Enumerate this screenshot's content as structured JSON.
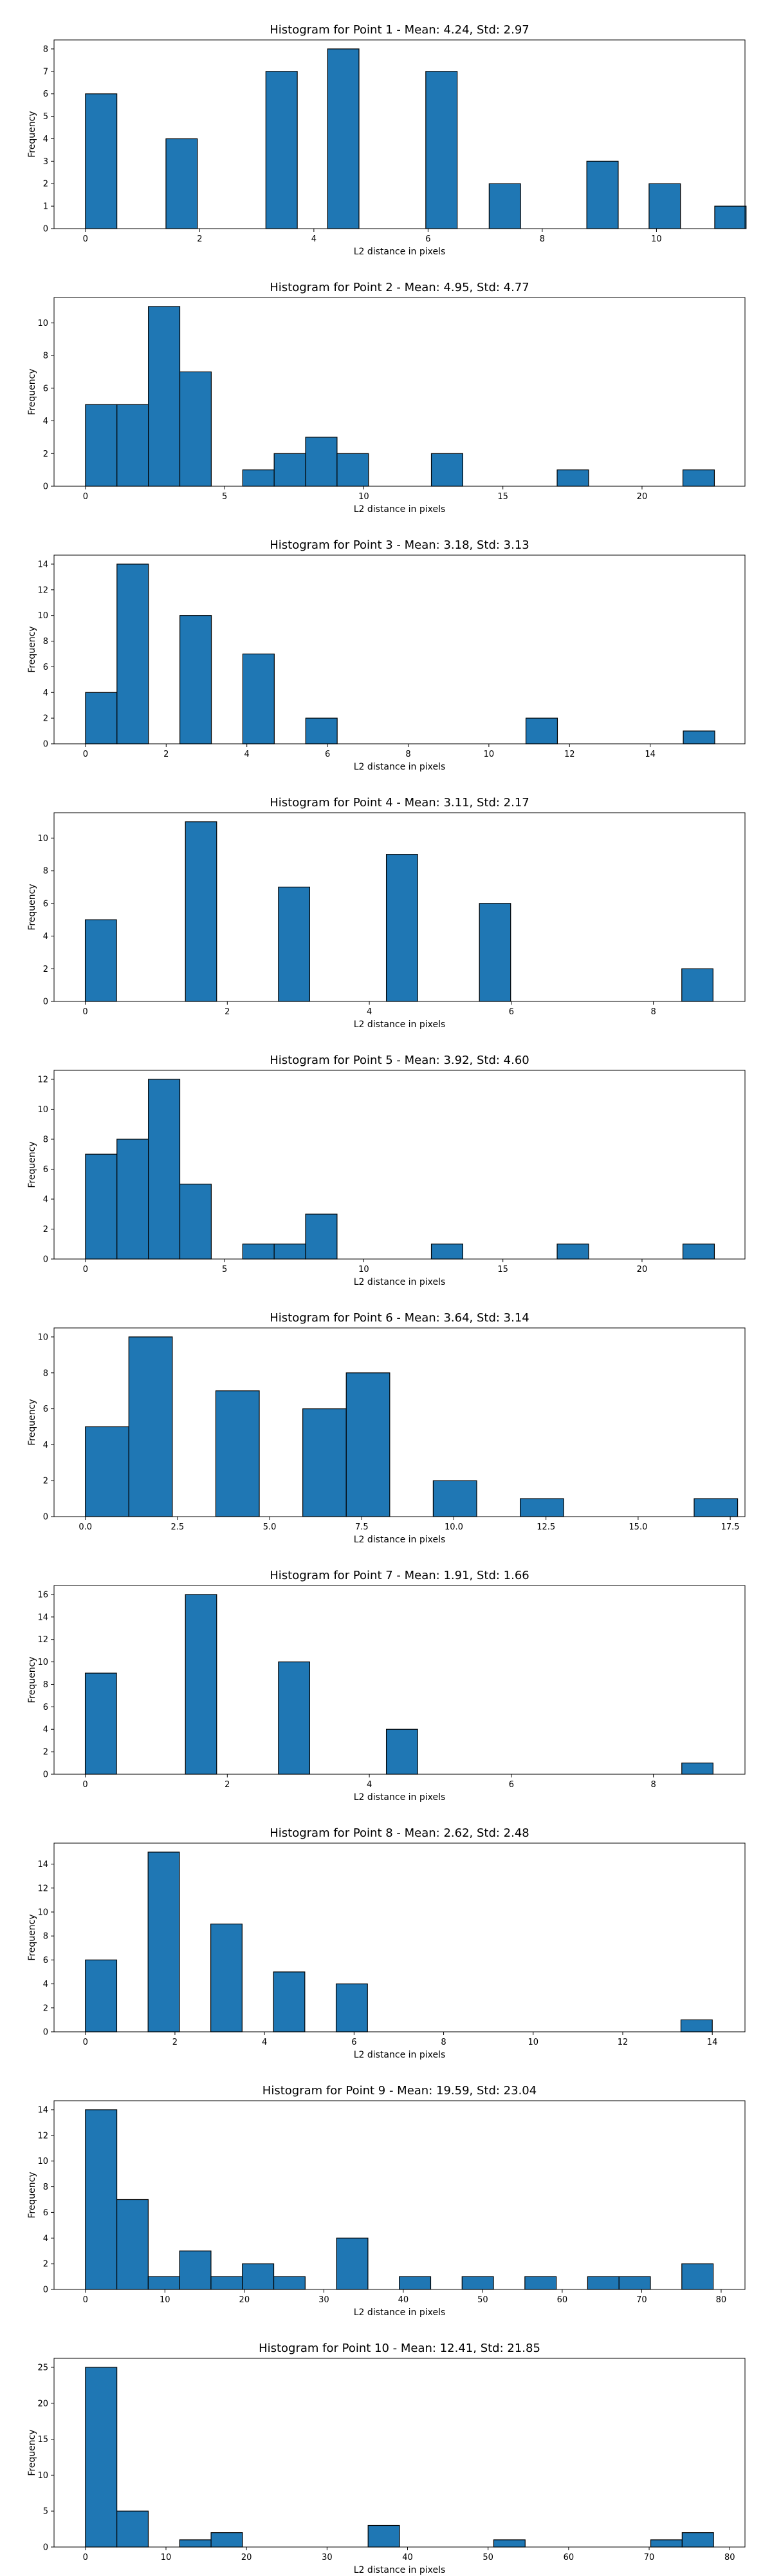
{
  "chart_data": [
    {
      "type": "bar",
      "title": "Histogram for Point 1 - Mean: 4.24, Std: 2.97",
      "xlabel": "L2 distance in pixels",
      "ylabel": "Frequency",
      "xlim": [
        -0.55,
        11.55
      ],
      "ylim": [
        0,
        8.4
      ],
      "bar_width": 0.55,
      "bars": [
        {
          "x": 0.0,
          "value": 6
        },
        {
          "x": 1.41,
          "value": 4
        },
        {
          "x": 3.16,
          "value": 7
        },
        {
          "x": 4.24,
          "value": 8
        },
        {
          "x": 5.96,
          "value": 7
        },
        {
          "x": 7.07,
          "value": 2
        },
        {
          "x": 8.78,
          "value": 3
        },
        {
          "x": 9.87,
          "value": 2
        },
        {
          "x": 11.02,
          "value": 1
        }
      ],
      "xticks": [
        0,
        2,
        4,
        6,
        8,
        10
      ],
      "yticks": [
        0,
        1,
        2,
        3,
        4,
        5,
        6,
        7,
        8
      ]
    },
    {
      "type": "bar",
      "title": "Histogram for Point 2 - Mean: 4.95, Std: 4.77",
      "xlabel": "L2 distance in pixels",
      "ylabel": "Frequency",
      "xlim": [
        -1.13,
        23.7
      ],
      "ylim": [
        0,
        11.55
      ],
      "bar_width": 1.13,
      "bars": [
        {
          "x": 0.0,
          "value": 5
        },
        {
          "x": 1.13,
          "value": 5
        },
        {
          "x": 2.26,
          "value": 11
        },
        {
          "x": 3.39,
          "value": 7
        },
        {
          "x": 5.65,
          "value": 1
        },
        {
          "x": 6.78,
          "value": 2
        },
        {
          "x": 7.91,
          "value": 3
        },
        {
          "x": 9.04,
          "value": 2
        },
        {
          "x": 12.43,
          "value": 2
        },
        {
          "x": 16.95,
          "value": 1
        },
        {
          "x": 21.47,
          "value": 1
        }
      ],
      "xticks": [
        0,
        5,
        10,
        15,
        20
      ],
      "yticks": [
        0,
        2,
        4,
        6,
        8,
        10
      ]
    },
    {
      "type": "bar",
      "title": "Histogram for Point 3 - Mean: 3.18, Std: 3.13",
      "xlabel": "L2 distance in pixels",
      "ylabel": "Frequency",
      "xlim": [
        -0.78,
        16.35
      ],
      "ylim": [
        0,
        14.7
      ],
      "bar_width": 0.78,
      "bars": [
        {
          "x": 0.0,
          "value": 4
        },
        {
          "x": 0.78,
          "value": 14
        },
        {
          "x": 2.34,
          "value": 10
        },
        {
          "x": 3.9,
          "value": 7
        },
        {
          "x": 5.46,
          "value": 2
        },
        {
          "x": 10.92,
          "value": 2
        },
        {
          "x": 14.82,
          "value": 1
        }
      ],
      "xticks": [
        0,
        2,
        4,
        6,
        8,
        10,
        12,
        14
      ],
      "yticks": [
        0,
        2,
        4,
        6,
        8,
        10,
        12,
        14
      ]
    },
    {
      "type": "bar",
      "title": "Histogram for Point 4 - Mean: 3.11, Std: 2.17",
      "xlabel": "L2 distance in pixels",
      "ylabel": "Frequency",
      "xlim": [
        -0.44,
        9.29
      ],
      "ylim": [
        0,
        11.55
      ],
      "bar_width": 0.44,
      "bars": [
        {
          "x": 0.0,
          "value": 5
        },
        {
          "x": 1.41,
          "value": 11
        },
        {
          "x": 2.72,
          "value": 7
        },
        {
          "x": 4.24,
          "value": 9
        },
        {
          "x": 5.55,
          "value": 6
        },
        {
          "x": 8.4,
          "value": 2
        }
      ],
      "xticks": [
        0,
        2,
        4,
        6,
        8
      ],
      "yticks": [
        0,
        2,
        4,
        6,
        8,
        10
      ]
    },
    {
      "type": "bar",
      "title": "Histogram for Point 5 - Mean: 3.92, Std: 4.60",
      "xlabel": "L2 distance in pixels",
      "ylabel": "Frequency",
      "xlim": [
        -1.13,
        23.7
      ],
      "ylim": [
        0,
        12.6
      ],
      "bar_width": 1.13,
      "bars": [
        {
          "x": 0.0,
          "value": 7
        },
        {
          "x": 1.13,
          "value": 8
        },
        {
          "x": 2.26,
          "value": 12
        },
        {
          "x": 3.39,
          "value": 5
        },
        {
          "x": 5.65,
          "value": 1
        },
        {
          "x": 6.78,
          "value": 1
        },
        {
          "x": 7.91,
          "value": 3
        },
        {
          "x": 12.43,
          "value": 1
        },
        {
          "x": 16.95,
          "value": 1
        },
        {
          "x": 21.47,
          "value": 1
        }
      ],
      "xticks": [
        0,
        5,
        10,
        15,
        20
      ],
      "yticks": [
        0,
        2,
        4,
        6,
        8,
        10,
        12
      ]
    },
    {
      "type": "bar",
      "title": "Histogram for Point 6 - Mean: 3.64, Std: 3.14",
      "xlabel": "L2 distance in pixels",
      "ylabel": "Frequency",
      "xlim": [
        -0.85,
        17.9
      ],
      "ylim": [
        0,
        10.5
      ],
      "bar_width": 1.18,
      "bars": [
        {
          "x": 0.0,
          "value": 5
        },
        {
          "x": 1.18,
          "value": 10
        },
        {
          "x": 3.54,
          "value": 7
        },
        {
          "x": 5.9,
          "value": 6
        },
        {
          "x": 7.08,
          "value": 8
        },
        {
          "x": 9.44,
          "value": 2
        },
        {
          "x": 11.8,
          "value": 1
        },
        {
          "x": 16.52,
          "value": 1
        }
      ],
      "xticks": [
        "0.0",
        "2.5",
        "5.0",
        "7.5",
        "10.0",
        "12.5",
        "15.0",
        "17.5"
      ],
      "yticks": [
        0,
        2,
        4,
        6,
        8,
        10
      ]
    },
    {
      "type": "bar",
      "title": "Histogram for Point 7 - Mean: 1.91, Std: 1.66",
      "xlabel": "L2 distance in pixels",
      "ylabel": "Frequency",
      "xlim": [
        -0.44,
        9.29
      ],
      "ylim": [
        0,
        16.8
      ],
      "bar_width": 0.44,
      "bars": [
        {
          "x": 0.0,
          "value": 9
        },
        {
          "x": 1.41,
          "value": 16
        },
        {
          "x": 2.72,
          "value": 10
        },
        {
          "x": 4.24,
          "value": 4
        },
        {
          "x": 8.4,
          "value": 1
        }
      ],
      "xticks": [
        0,
        2,
        4,
        6,
        8
      ],
      "yticks": [
        0,
        2,
        4,
        6,
        8,
        10,
        12,
        14,
        16
      ]
    },
    {
      "type": "bar",
      "title": "Histogram for Point 8 - Mean: 2.62, Std: 2.48",
      "xlabel": "L2 distance in pixels",
      "ylabel": "Frequency",
      "xlim": [
        -0.7,
        14.73
      ],
      "ylim": [
        0,
        15.75
      ],
      "bar_width": 0.7,
      "bars": [
        {
          "x": 0.0,
          "value": 6
        },
        {
          "x": 1.4,
          "value": 15
        },
        {
          "x": 2.8,
          "value": 9
        },
        {
          "x": 4.2,
          "value": 5
        },
        {
          "x": 5.6,
          "value": 4
        },
        {
          "x": 13.3,
          "value": 1
        }
      ],
      "xticks": [
        0,
        2,
        4,
        6,
        8,
        10,
        12,
        14
      ],
      "yticks": [
        0,
        2,
        4,
        6,
        8,
        10,
        12,
        14
      ]
    },
    {
      "type": "bar",
      "title": "Histogram for Point 9 - Mean: 19.59, Std: 23.04",
      "xlabel": "L2 distance in pixels",
      "ylabel": "Frequency",
      "xlim": [
        -3.95,
        83.0
      ],
      "ylim": [
        0,
        14.7
      ],
      "bar_width": 3.95,
      "bars": [
        {
          "x": 0.0,
          "value": 14
        },
        {
          "x": 3.95,
          "value": 7
        },
        {
          "x": 7.9,
          "value": 1
        },
        {
          "x": 11.85,
          "value": 3
        },
        {
          "x": 15.8,
          "value": 1
        },
        {
          "x": 19.75,
          "value": 2
        },
        {
          "x": 23.7,
          "value": 1
        },
        {
          "x": 31.6,
          "value": 4
        },
        {
          "x": 39.5,
          "value": 1
        },
        {
          "x": 47.4,
          "value": 1
        },
        {
          "x": 55.3,
          "value": 1
        },
        {
          "x": 63.2,
          "value": 1
        },
        {
          "x": 67.15,
          "value": 1
        },
        {
          "x": 75.05,
          "value": 2
        }
      ],
      "xticks": [
        0,
        10,
        20,
        30,
        40,
        50,
        60,
        70,
        80
      ],
      "yticks": [
        0,
        2,
        4,
        6,
        8,
        10,
        12,
        14
      ]
    },
    {
      "type": "bar",
      "title": "Histogram for Point 10 - Mean: 12.41, Std: 21.85",
      "xlabel": "L2 distance in pixels",
      "ylabel": "Frequency",
      "xlim": [
        -3.9,
        81.9
      ],
      "ylim": [
        0,
        26.25
      ],
      "bar_width": 3.9,
      "bars": [
        {
          "x": 0.0,
          "value": 25
        },
        {
          "x": 3.9,
          "value": 5
        },
        {
          "x": 11.7,
          "value": 1
        },
        {
          "x": 15.6,
          "value": 2
        },
        {
          "x": 35.1,
          "value": 3
        },
        {
          "x": 50.7,
          "value": 1
        },
        {
          "x": 70.2,
          "value": 1
        },
        {
          "x": 74.1,
          "value": 2
        }
      ],
      "xticks": [
        0,
        10,
        20,
        30,
        40,
        50,
        60,
        70,
        80
      ],
      "yticks": [
        0,
        5,
        10,
        15,
        20,
        25
      ]
    }
  ]
}
